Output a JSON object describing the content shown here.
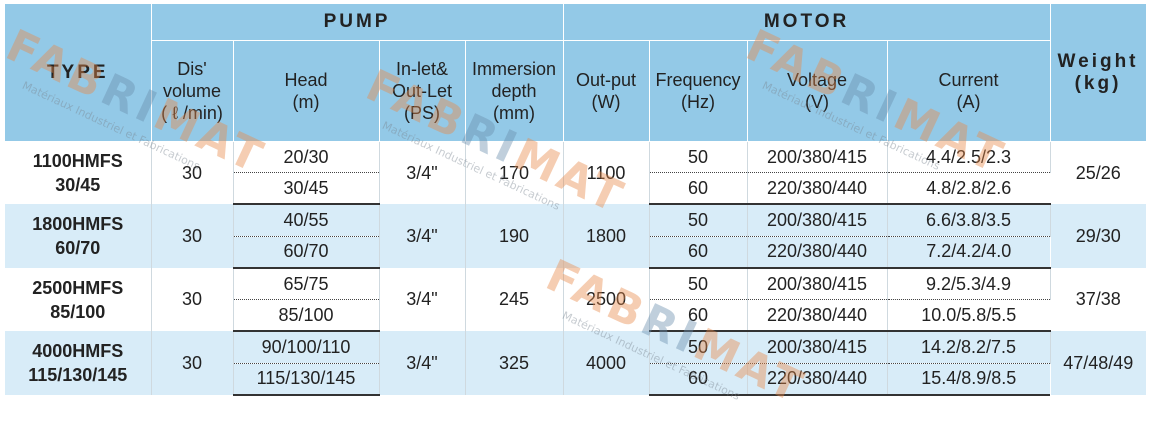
{
  "headers": {
    "type": "TYPE",
    "pump": "PUMP",
    "motor": "MOTOR",
    "weight": "Weight\n(kg)",
    "columns": [
      "Dis'\nvolume\n( ℓ /min)",
      "Head\n(m)",
      "In-let&\nOut-Let\n(PS)",
      "Immersion\ndepth\n(mm)",
      "Out-put\n(W)",
      "Frequency\n(Hz)",
      "Voltage\n(V)",
      "Current\n(A)"
    ]
  },
  "rows": [
    {
      "type": "1100HMFS\n30/45",
      "volume": "30",
      "inlet": "3/4\"",
      "depth": "170",
      "output": "1100",
      "weight": "25/26",
      "sub": [
        {
          "head": "20/30",
          "frequency": "50",
          "voltage": "200/380/415",
          "current": "4.4/2.5/2.3"
        },
        {
          "head": "30/45",
          "frequency": "60",
          "voltage": "220/380/440",
          "current": "4.8/2.8/2.6"
        }
      ]
    },
    {
      "type": "1800HMFS\n60/70",
      "volume": "30",
      "inlet": "3/4\"",
      "depth": "190",
      "output": "1800",
      "weight": "29/30",
      "sub": [
        {
          "head": "40/55",
          "frequency": "50",
          "voltage": "200/380/415",
          "current": "6.6/3.8/3.5"
        },
        {
          "head": "60/70",
          "frequency": "60",
          "voltage": "220/380/440",
          "current": "7.2/4.2/4.0"
        }
      ]
    },
    {
      "type": "2500HMFS\n85/100",
      "volume": "30",
      "inlet": "3/4\"",
      "depth": "245",
      "output": "2500",
      "weight": "37/38",
      "sub": [
        {
          "head": "65/75",
          "frequency": "50",
          "voltage": "200/380/415",
          "current": "9.2/5.3/4.9"
        },
        {
          "head": "85/100",
          "frequency": "60",
          "voltage": "220/380/440",
          "current": "10.0/5.8/5.5"
        }
      ]
    },
    {
      "type": "4000HMFS\n115/130/145",
      "volume": "30",
      "inlet": "3/4\"",
      "depth": "325",
      "output": "4000",
      "weight": "47/48/49",
      "sub": [
        {
          "head": "90/100/110",
          "frequency": "50",
          "voltage": "200/380/415",
          "current": "14.2/8.2/7.5"
        },
        {
          "head": "115/130/145",
          "frequency": "60",
          "voltage": "220/380/440",
          "current": "15.4/8.9/8.5"
        }
      ]
    }
  ],
  "watermark": {
    "logo_left": "FAB",
    "logo_mid": "RI",
    "logo_right": "MAT",
    "tagline": "Matériaux Industriel et Fabrications"
  }
}
